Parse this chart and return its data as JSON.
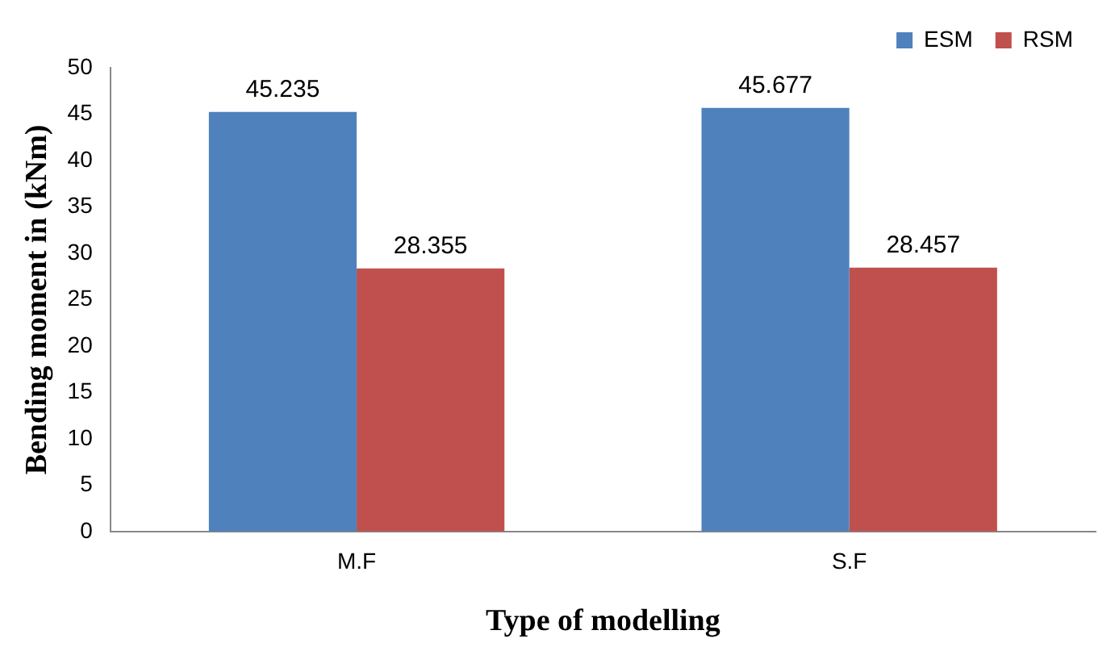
{
  "chart_data": {
    "type": "bar",
    "xlabel": "Type of modelling",
    "ylabel": "Bending moment in (kNm)",
    "categories": [
      "M.F",
      "S.F"
    ],
    "series": [
      {
        "name": "ESM",
        "color": "#4f81bd",
        "values": [
          45.235,
          45.677
        ]
      },
      {
        "name": "RSM",
        "color": "#c0504d",
        "values": [
          28.355,
          28.457
        ]
      }
    ],
    "ylim": [
      0,
      50
    ],
    "yticks": [
      0,
      5,
      10,
      15,
      20,
      25,
      30,
      35,
      40,
      45,
      50
    ],
    "grid": false,
    "legend": "top right",
    "data_labels": true
  }
}
